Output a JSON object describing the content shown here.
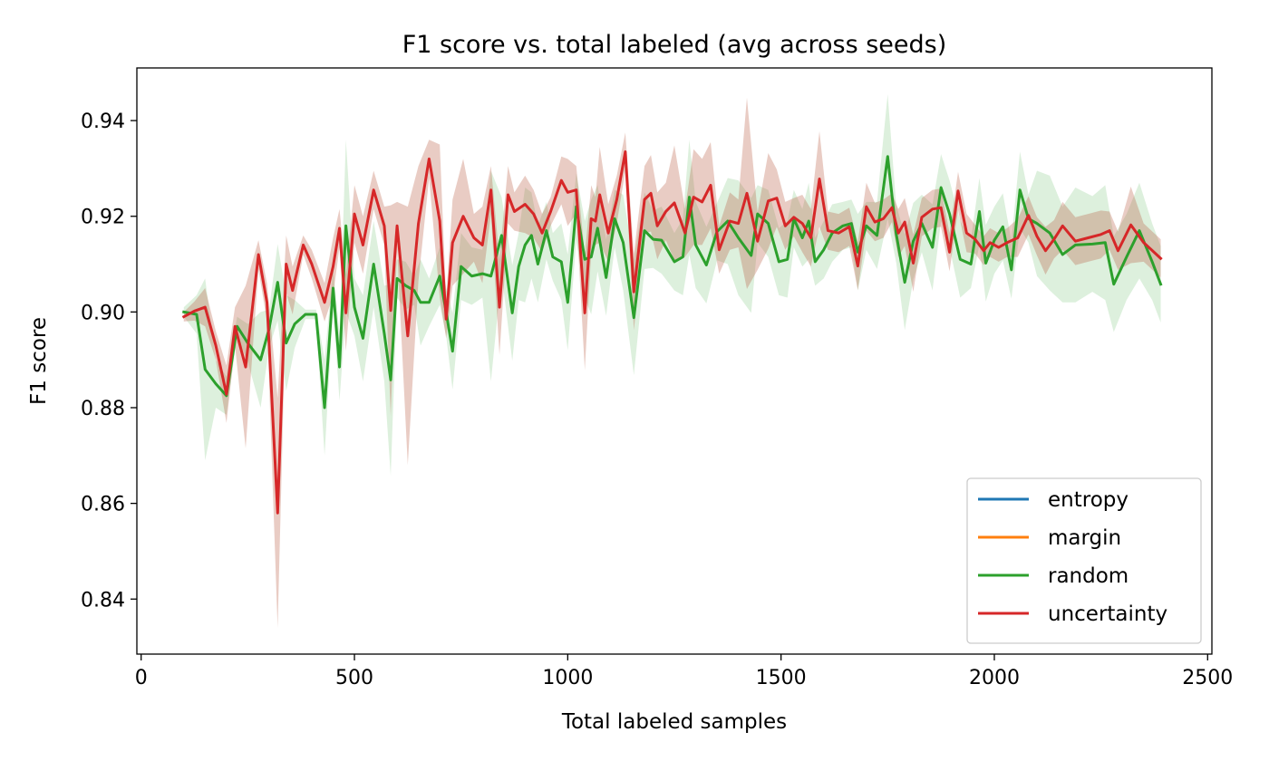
{
  "chart_data": {
    "type": "line",
    "title": "F1 score vs. total labeled (avg across seeds)",
    "xlabel": "Total labeled samples",
    "ylabel": "F1 score",
    "xlim": [
      -10,
      2510
    ],
    "ylim": [
      0.8285,
      0.951
    ],
    "xticks": [
      0,
      500,
      1000,
      1500,
      2000,
      2500
    ],
    "xtick_labels": [
      "0",
      "500",
      "1000",
      "1500",
      "2000",
      "2500"
    ],
    "yticks": [
      0.84,
      0.86,
      0.88,
      0.9,
      0.92,
      0.94
    ],
    "ytick_labels": [
      "0.84",
      "0.86",
      "0.88",
      "0.90",
      "0.92",
      "0.94"
    ],
    "grid": false,
    "legend_position": "lower-right",
    "series": [
      {
        "name": "entropy",
        "color": "#1f77b4",
        "x": [],
        "y": []
      },
      {
        "name": "margin",
        "color": "#ff7f0e",
        "x": [],
        "y": []
      },
      {
        "name": "random",
        "color": "#2ca02c",
        "band_color": "#2ca02c",
        "x": [
          100,
          130,
          150,
          175,
          200,
          225,
          250,
          280,
          300,
          320,
          340,
          360,
          385,
          410,
          430,
          450,
          465,
          480,
          500,
          520,
          545,
          570,
          585,
          600,
          620,
          640,
          655,
          675,
          700,
          715,
          730,
          750,
          775,
          800,
          820,
          845,
          870,
          885,
          900,
          915,
          930,
          950,
          965,
          985,
          1000,
          1020,
          1040,
          1055,
          1070,
          1090,
          1110,
          1130,
          1155,
          1180,
          1200,
          1220,
          1250,
          1270,
          1285,
          1300,
          1325,
          1350,
          1375,
          1400,
          1430,
          1445,
          1470,
          1495,
          1515,
          1530,
          1550,
          1565,
          1580,
          1600,
          1620,
          1645,
          1665,
          1680,
          1700,
          1725,
          1750,
          1770,
          1790,
          1810,
          1830,
          1855,
          1875,
          1895,
          1920,
          1945,
          1965,
          1980,
          2000,
          2020,
          2040,
          2060,
          2080,
          2100,
          2130,
          2160,
          2190,
          2230,
          2260,
          2280,
          2310,
          2340,
          2370,
          2390
        ],
        "y": [
          0.9,
          0.8995,
          0.888,
          0.885,
          0.8825,
          0.897,
          0.8935,
          0.89,
          0.8965,
          0.9062,
          0.8935,
          0.8975,
          0.8995,
          0.8995,
          0.88,
          0.905,
          0.8885,
          0.918,
          0.901,
          0.8945,
          0.91,
          0.8955,
          0.8858,
          0.907,
          0.9055,
          0.9045,
          0.902,
          0.902,
          0.9075,
          0.9,
          0.8918,
          0.9095,
          0.9075,
          0.908,
          0.9075,
          0.916,
          0.8998,
          0.9095,
          0.914,
          0.916,
          0.91,
          0.917,
          0.9115,
          0.9105,
          0.902,
          0.922,
          0.911,
          0.9115,
          0.9175,
          0.9072,
          0.9195,
          0.9145,
          0.8988,
          0.917,
          0.9152,
          0.915,
          0.9105,
          0.9115,
          0.924,
          0.914,
          0.9098,
          0.9168,
          0.919,
          0.9155,
          0.9118,
          0.9205,
          0.9185,
          0.9105,
          0.911,
          0.9195,
          0.9155,
          0.919,
          0.9105,
          0.913,
          0.9165,
          0.918,
          0.9185,
          0.9125,
          0.918,
          0.916,
          0.9325,
          0.9163,
          0.9062,
          0.9148,
          0.9185,
          0.9135,
          0.926,
          0.9205,
          0.911,
          0.91,
          0.921,
          0.9102,
          0.915,
          0.9178,
          0.9088,
          0.9255,
          0.9195,
          0.9185,
          0.9165,
          0.912,
          0.914,
          0.9142,
          0.9145,
          0.9058,
          0.9115,
          0.917,
          0.9105,
          0.9058
        ],
        "band_halfwidth": [
          0.001,
          0.004,
          0.019,
          0.005,
          0.004,
          0.002,
          0.004,
          0.01,
          0.004,
          0.008,
          0.01,
          0.005,
          0.001,
          0.001,
          0.01,
          0.004,
          0.007,
          0.018,
          0.006,
          0.009,
          0.009,
          0.01,
          0.02,
          0.004,
          0.005,
          0.003,
          0.009,
          0.005,
          0.006,
          0.005,
          0.008,
          0.007,
          0.006,
          0.005,
          0.022,
          0.008,
          0.01,
          0.007,
          0.012,
          0.009,
          0.008,
          0.006,
          0.005,
          0.008,
          0.01,
          0.007,
          0.008,
          0.012,
          0.009,
          0.008,
          0.006,
          0.01,
          0.012,
          0.008,
          0.006,
          0.007,
          0.006,
          0.008,
          0.012,
          0.009,
          0.008,
          0.006,
          0.009,
          0.012,
          0.012,
          0.006,
          0.007,
          0.007,
          0.008,
          0.006,
          0.006,
          0.008,
          0.005,
          0.006,
          0.006,
          0.005,
          0.005,
          0.008,
          0.005,
          0.007,
          0.013,
          0.006,
          0.01,
          0.008,
          0.006,
          0.009,
          0.007,
          0.007,
          0.008,
          0.005,
          0.007,
          0.008,
          0.007,
          0.007,
          0.006,
          0.008,
          0.005,
          0.011,
          0.012,
          0.01,
          0.012,
          0.01,
          0.012,
          0.01,
          0.009,
          0.01,
          0.008,
          0.008
        ]
      },
      {
        "name": "uncertainty",
        "color": "#d62728",
        "band_color": "#b5553c",
        "x": [
          100,
          125,
          150,
          175,
          200,
          220,
          245,
          275,
          295,
          320,
          340,
          355,
          380,
          400,
          430,
          450,
          465,
          480,
          500,
          520,
          545,
          570,
          585,
          600,
          625,
          650,
          675,
          700,
          715,
          730,
          755,
          780,
          800,
          820,
          840,
          860,
          875,
          900,
          920,
          940,
          960,
          985,
          1000,
          1020,
          1040,
          1055,
          1065,
          1075,
          1095,
          1115,
          1135,
          1155,
          1180,
          1195,
          1210,
          1230,
          1250,
          1275,
          1295,
          1315,
          1335,
          1355,
          1380,
          1400,
          1420,
          1445,
          1470,
          1490,
          1510,
          1530,
          1550,
          1570,
          1590,
          1610,
          1635,
          1660,
          1680,
          1700,
          1720,
          1740,
          1760,
          1775,
          1790,
          1810,
          1830,
          1855,
          1875,
          1895,
          1915,
          1935,
          1955,
          1975,
          1990,
          2010,
          2030,
          2055,
          2080,
          2100,
          2120,
          2140,
          2160,
          2190,
          2220,
          2250,
          2270,
          2290,
          2320,
          2350,
          2390
        ],
        "y": [
          0.899,
          0.9002,
          0.901,
          0.893,
          0.8828,
          0.897,
          0.8885,
          0.912,
          0.902,
          0.858,
          0.91,
          0.9045,
          0.914,
          0.91,
          0.902,
          0.9095,
          0.9175,
          0.8998,
          0.9205,
          0.914,
          0.9255,
          0.918,
          0.9003,
          0.918,
          0.895,
          0.9185,
          0.932,
          0.919,
          0.8985,
          0.9145,
          0.92,
          0.9155,
          0.914,
          0.9255,
          0.901,
          0.9245,
          0.921,
          0.9225,
          0.9205,
          0.9165,
          0.921,
          0.9275,
          0.925,
          0.9255,
          0.8998,
          0.9195,
          0.919,
          0.9245,
          0.9165,
          0.9235,
          0.9335,
          0.9042,
          0.9235,
          0.9248,
          0.918,
          0.921,
          0.9228,
          0.9165,
          0.924,
          0.923,
          0.9265,
          0.913,
          0.919,
          0.9185,
          0.9248,
          0.9148,
          0.9232,
          0.9238,
          0.918,
          0.9198,
          0.9185,
          0.9155,
          0.9278,
          0.917,
          0.9165,
          0.9178,
          0.9096,
          0.922,
          0.9188,
          0.9195,
          0.9218,
          0.9165,
          0.9188,
          0.9102,
          0.9198,
          0.9215,
          0.9218,
          0.9125,
          0.9253,
          0.9165,
          0.9152,
          0.9128,
          0.9145,
          0.9135,
          0.9145,
          0.9155,
          0.9202,
          0.9158,
          0.9128,
          0.9152,
          0.918,
          0.9148,
          0.9155,
          0.9162,
          0.917,
          0.9128,
          0.9182,
          0.9145,
          0.9112
        ],
        "band_halfwidth": [
          0.001,
          0.002,
          0.004,
          0.003,
          0.006,
          0.004,
          0.017,
          0.003,
          0.004,
          0.024,
          0.006,
          0.005,
          0.002,
          0.003,
          0.004,
          0.006,
          0.004,
          0.008,
          0.006,
          0.006,
          0.004,
          0.004,
          0.022,
          0.005,
          0.027,
          0.012,
          0.004,
          0.016,
          0.004,
          0.009,
          0.012,
          0.005,
          0.008,
          0.005,
          0.01,
          0.006,
          0.004,
          0.006,
          0.005,
          0.004,
          0.003,
          0.005,
          0.007,
          0.005,
          0.012,
          0.007,
          0.005,
          0.01,
          0.006,
          0.005,
          0.004,
          0.008,
          0.007,
          0.008,
          0.007,
          0.006,
          0.012,
          0.005,
          0.01,
          0.009,
          0.009,
          0.005,
          0.006,
          0.005,
          0.02,
          0.006,
          0.01,
          0.006,
          0.005,
          0.004,
          0.006,
          0.006,
          0.01,
          0.004,
          0.004,
          0.004,
          0.005,
          0.005,
          0.004,
          0.004,
          0.003,
          0.005,
          0.005,
          0.006,
          0.004,
          0.004,
          0.004,
          0.004,
          0.004,
          0.004,
          0.003,
          0.003,
          0.003,
          0.003,
          0.003,
          0.004,
          0.004,
          0.004,
          0.005,
          0.004,
          0.005,
          0.005,
          0.005,
          0.005,
          0.004,
          0.004,
          0.008,
          0.004,
          0.004
        ]
      }
    ]
  }
}
